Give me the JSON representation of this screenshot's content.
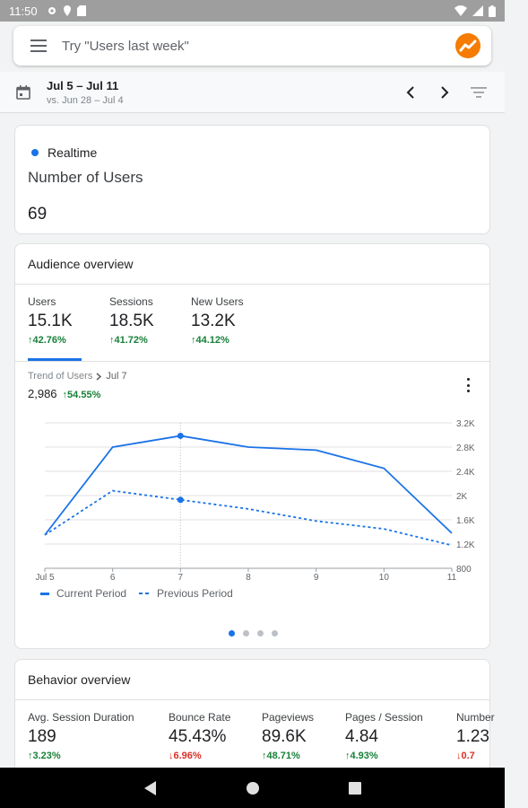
{
  "status_bar": {
    "time": "11:50"
  },
  "search": {
    "placeholder": "Try \"Users last week\""
  },
  "date_range": {
    "current": "Jul 5 – Jul 11",
    "comparison": "vs. Jun 28 – Jul 4"
  },
  "realtime": {
    "label": "Realtime",
    "title": "Number of Users",
    "value": "69"
  },
  "audience": {
    "title": "Audience overview",
    "metrics": [
      {
        "label": "Users",
        "value": "15.1K",
        "change": "42.76%",
        "direction": "up"
      },
      {
        "label": "Sessions",
        "value": "18.5K",
        "change": "41.72%",
        "direction": "up"
      },
      {
        "label": "New Users",
        "value": "13.2K",
        "change": "44.12%",
        "direction": "up"
      }
    ],
    "trend": {
      "crumb": "Trend of Users",
      "date": "Jul 7",
      "value": "2,986",
      "change": "54.55%"
    },
    "legend": {
      "current": "Current Period",
      "previous": "Previous Period"
    }
  },
  "chart_data": {
    "type": "line",
    "categories": [
      "Jul 5",
      "6",
      "7",
      "8",
      "9",
      "10",
      "11"
    ],
    "series": [
      {
        "name": "Current Period",
        "values": [
          1350,
          2800,
          2986,
          2800,
          2750,
          2450,
          1380
        ],
        "style": "solid"
      },
      {
        "name": "Previous Period",
        "values": [
          1350,
          2080,
          1930,
          1780,
          1580,
          1450,
          1180
        ],
        "style": "dashed"
      }
    ],
    "y_ticks": [
      "3.2K",
      "2.8K",
      "2.4K",
      "2K",
      "1.6K",
      "1.2K",
      "800"
    ],
    "ylim": [
      800,
      3200
    ],
    "highlight_index": 2,
    "grid": true,
    "legend_position": "bottom-left",
    "colors": {
      "line": "#1a73e8",
      "grid": "#e0e0e0"
    }
  },
  "behavior": {
    "title": "Behavior overview",
    "metrics": [
      {
        "label": "Avg. Session Duration",
        "value": "189",
        "change": "3.23%",
        "direction": "up"
      },
      {
        "label": "Bounce Rate",
        "value": "45.43%",
        "change": "6.96%",
        "direction": "down"
      },
      {
        "label": "Pageviews",
        "value": "89.6K",
        "change": "48.71%",
        "direction": "up"
      },
      {
        "label": "Pages / Session",
        "value": "4.84",
        "change": "4.93%",
        "direction": "up"
      },
      {
        "label": "Number",
        "value": "1.23",
        "change": "0.7",
        "direction": "down"
      }
    ]
  },
  "colors": {
    "accent": "#1a73e8",
    "positive": "#188038",
    "negative": "#d93025",
    "brand": "#f57c00"
  }
}
